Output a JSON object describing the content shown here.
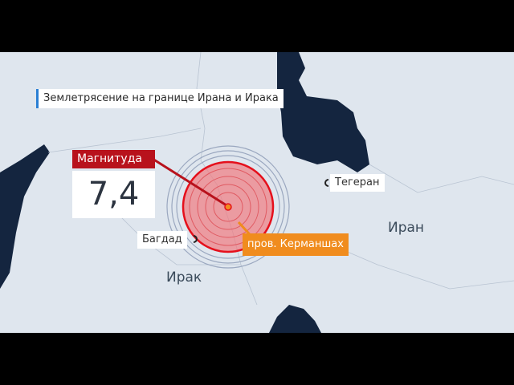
{
  "title": "Землетрясение на границе Ирана и Ирака",
  "magnitude": {
    "label": "Магнитуда",
    "value": "7,4"
  },
  "cities": {
    "tehran": "Тегеран",
    "baghdad": "Багдад"
  },
  "epicenter_region": "пров. Керманшах",
  "countries": {
    "iran": "Иран",
    "iraq": "Ирак"
  },
  "colors": {
    "land": "#dfe6ee",
    "sea": "#14253f",
    "accent_red": "#b8121c",
    "accent_orange": "#f08c1e",
    "title_bar": "#2a7fd4"
  }
}
